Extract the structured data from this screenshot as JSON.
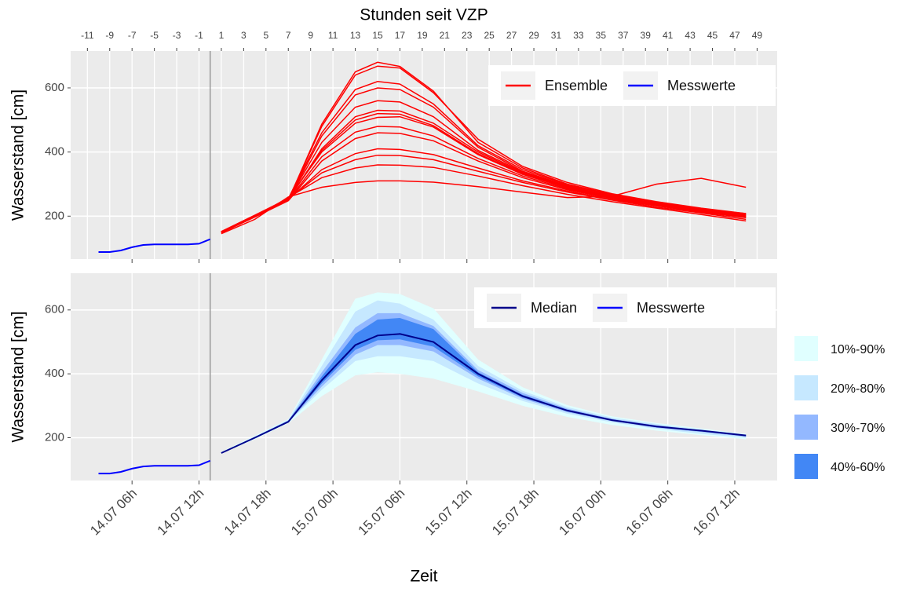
{
  "chart_data": [
    {
      "type": "line",
      "top_axis_title": "Stunden seit VZP",
      "ylabel": "Wasserstand [cm]",
      "xlim": [
        -12.5,
        50.8
      ],
      "ylim": [
        66,
        715
      ],
      "yticks": [
        200,
        400,
        600
      ],
      "grid": true,
      "vline": 0,
      "legend": "top-right",
      "xticks": [
        -11,
        -9,
        -7,
        -5,
        -3,
        -1,
        1,
        3,
        5,
        7,
        9,
        11,
        13,
        15,
        17,
        19,
        21,
        23,
        25,
        27,
        29,
        31,
        33,
        35,
        37,
        39,
        41,
        43,
        45,
        47,
        49
      ],
      "series": [
        {
          "name": "Ensemble",
          "color": "#ff0000",
          "x": [
            1,
            4,
            7,
            10,
            13,
            15,
            17,
            20,
            24,
            28,
            32,
            36,
            40,
            44,
            48
          ],
          "members": [
            [
              150,
              200,
              250,
              487,
              650,
              680,
              667,
              590,
              430,
              350,
              300,
              268,
              243,
              222,
              205
            ],
            [
              148,
              198,
              252,
              480,
              640,
              668,
              662,
              585,
              440,
              355,
              305,
              270,
              245,
              225,
              208
            ],
            [
              152,
              202,
              255,
              460,
              595,
              620,
              612,
              550,
              420,
              345,
              298,
              265,
              240,
              220,
              203
            ],
            [
              150,
              200,
              250,
              450,
              578,
              600,
              595,
              540,
              415,
              340,
              295,
              262,
              238,
              218,
              200
            ],
            [
              149,
              199,
              252,
              430,
              540,
              560,
              556,
              510,
              405,
              338,
              293,
              260,
              236,
              215,
              198
            ],
            [
              151,
              201,
              250,
              410,
              510,
              530,
              528,
              490,
              400,
              335,
              292,
              262,
              240,
              222,
              208
            ],
            [
              150,
              200,
              253,
              405,
              500,
              520,
              518,
              482,
              395,
              332,
              290,
              260,
              238,
              220,
              205
            ],
            [
              152,
              203,
              255,
              400,
              490,
              508,
              510,
              478,
              392,
              330,
              288,
              258,
              236,
              218,
              202
            ],
            [
              150,
              200,
              250,
              385,
              462,
              480,
              478,
              450,
              380,
              325,
              285,
              256,
              234,
              215,
              198
            ],
            [
              148,
              197,
              248,
              372,
              442,
              460,
              458,
              435,
              372,
              320,
              282,
              255,
              233,
              214,
              196
            ],
            [
              151,
              200,
              252,
              345,
              395,
              410,
              408,
              392,
              350,
              310,
              278,
              252,
              232,
              212,
              195
            ],
            [
              150,
              199,
              254,
              335,
              376,
              390,
              389,
              376,
              340,
              305,
              275,
              250,
              228,
              210,
              190
            ],
            [
              149,
              198,
              258,
              320,
              350,
              360,
              359,
              352,
              325,
              295,
              268,
              245,
              225,
              205,
              185
            ],
            [
              145,
              190,
              260,
              290,
              305,
              310,
              310,
              306,
              292,
              275,
              258,
              262,
              300,
              318,
              290
            ]
          ]
        },
        {
          "name": "Messwerte",
          "color": "#0000ff",
          "x": [
            -10,
            -9,
            -8,
            -7,
            -6,
            -5,
            -4,
            -3,
            -2,
            -1,
            0
          ],
          "values": [
            88,
            88,
            93,
            103,
            110,
            112,
            112,
            112,
            112,
            114,
            128
          ]
        }
      ]
    },
    {
      "type": "band",
      "ylabel": "Wasserstand [cm]",
      "xlabel": "Zeit",
      "xlim": [
        -12.5,
        50.8
      ],
      "ylim": [
        66,
        715
      ],
      "yticks": [
        200,
        400,
        600
      ],
      "grid": true,
      "vline": 0,
      "legend": "top-right",
      "xticks": [
        {
          "value": -7,
          "label": "14.07 06h"
        },
        {
          "value": -1,
          "label": "14.07 12h"
        },
        {
          "value": 5,
          "label": "14.07 18h"
        },
        {
          "value": 11,
          "label": "15.07 00h"
        },
        {
          "value": 17,
          "label": "15.07 06h"
        },
        {
          "value": 23,
          "label": "15.07 12h"
        },
        {
          "value": 29,
          "label": "15.07 18h"
        },
        {
          "value": 35,
          "label": "16.07 00h"
        },
        {
          "value": 41,
          "label": "16.07 06h"
        },
        {
          "value": 47,
          "label": "16.07 12h"
        }
      ],
      "bands_x": [
        1,
        4,
        7,
        10,
        13,
        15,
        17,
        20,
        24,
        28,
        32,
        36,
        40,
        44,
        48
      ],
      "bands": [
        {
          "name": "10%-90%",
          "color": "#e0ffff",
          "lower": [
            150,
            195,
            245,
            330,
            395,
            405,
            400,
            385,
            345,
            300,
            265,
            240,
            222,
            208,
            195
          ],
          "upper": [
            156,
            206,
            258,
            445,
            635,
            655,
            650,
            605,
            445,
            358,
            302,
            267,
            246,
            229,
            212
          ]
        },
        {
          "name": "20%-80%",
          "color": "#c6e8ff",
          "lower": [
            151,
            197,
            248,
            350,
            440,
            455,
            455,
            440,
            370,
            315,
            275,
            248,
            228,
            212,
            200
          ],
          "upper": [
            154,
            204,
            256,
            425,
            595,
            630,
            620,
            570,
            425,
            347,
            296,
            263,
            243,
            226,
            210
          ]
        },
        {
          "name": "30%-70%",
          "color": "#93b8ff",
          "lower": [
            151,
            198,
            249,
            360,
            460,
            490,
            490,
            470,
            385,
            322,
            280,
            252,
            231,
            218,
            203
          ],
          "upper": [
            153,
            202,
            254,
            405,
            545,
            590,
            590,
            550,
            412,
            340,
            291,
            259,
            239,
            224,
            209
          ]
        },
        {
          "name": "40%-60%",
          "color": "#4287f5",
          "lower": [
            152,
            199,
            250,
            370,
            475,
            505,
            508,
            485,
            392,
            326,
            283,
            254,
            233,
            220,
            205
          ],
          "upper": [
            153,
            201,
            252,
            392,
            525,
            570,
            575,
            540,
            405,
            334,
            288,
            257,
            237,
            222,
            208
          ]
        }
      ],
      "series": [
        {
          "name": "Median",
          "color": "#00008b",
          "x": [
            1,
            4,
            7,
            10,
            13,
            15,
            17,
            20,
            24,
            28,
            32,
            36,
            40,
            44,
            48
          ],
          "values": [
            152,
            200,
            250,
            380,
            490,
            520,
            525,
            500,
            400,
            330,
            285,
            255,
            235,
            222,
            207
          ]
        },
        {
          "name": "Messwerte",
          "color": "#0000ff",
          "x": [
            -10,
            -9,
            -8,
            -7,
            -6,
            -5,
            -4,
            -3,
            -2,
            -1,
            0
          ],
          "values": [
            88,
            88,
            93,
            103,
            110,
            112,
            112,
            112,
            112,
            114,
            128
          ]
        }
      ]
    }
  ]
}
